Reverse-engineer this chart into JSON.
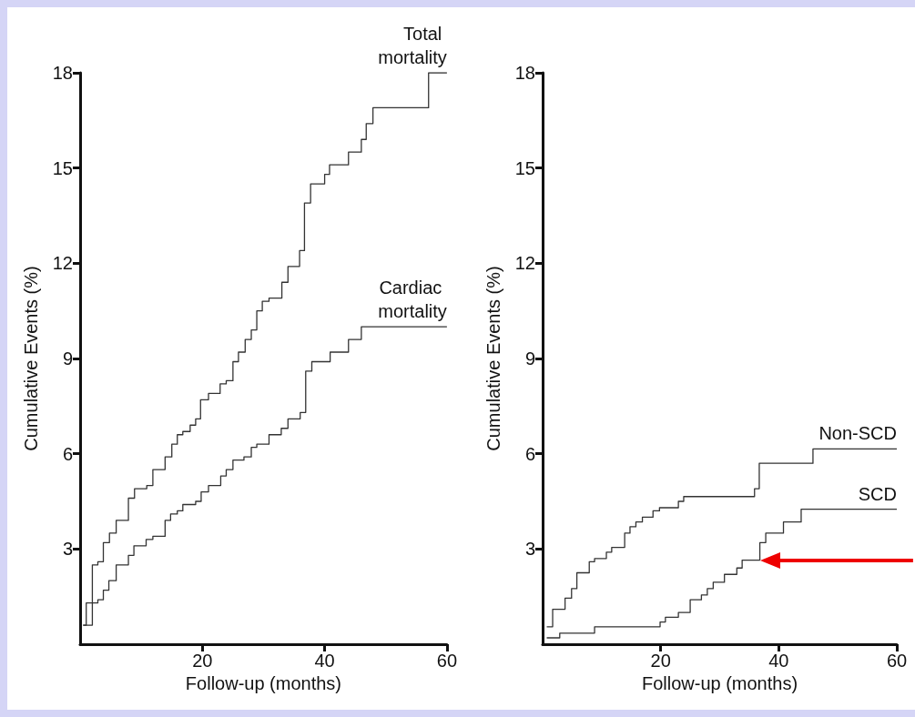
{
  "chart_data": [
    {
      "type": "step",
      "xlabel": "Follow-up (months)",
      "ylabel": "Cumulative Events (%)",
      "xlim": [
        0,
        60
      ],
      "xticks": [
        20,
        40,
        60
      ],
      "ylim": [
        0,
        18
      ],
      "yticks": [
        3,
        6,
        9,
        12,
        15,
        18
      ],
      "marker": "none",
      "grid": false,
      "legend": false,
      "series": [
        {
          "name": "Total mortality",
          "color": "#333333",
          "x": [
            0.5,
            2.0,
            2.9,
            3.8,
            4.8,
            5.9,
            7.9,
            8.9,
            10.9,
            11.9,
            13.9,
            15,
            15.9,
            16.8,
            18,
            18.9,
            19.7,
            21,
            22.9,
            23.9,
            25,
            25.9,
            27,
            28,
            28.9,
            29.8,
            30.9,
            33,
            34,
            35.9,
            36.7,
            37.7,
            40,
            40.8,
            43.9,
            46,
            46.8,
            47.9,
            57,
            60
          ],
          "values": [
            0.6,
            2.5,
            2.6,
            3.2,
            3.5,
            3.9,
            4.6,
            4.9,
            5.0,
            5.5,
            5.9,
            6.3,
            6.6,
            6.7,
            6.9,
            7.1,
            7.7,
            7.9,
            8.2,
            8.3,
            8.9,
            9.2,
            9.6,
            9.9,
            10.5,
            10.8,
            10.9,
            11.4,
            11.9,
            12.4,
            13.9,
            14.5,
            14.8,
            15.1,
            15.5,
            15.9,
            16.4,
            16.9,
            18.0,
            18.0
          ]
        },
        {
          "name": "Cardiac mortality",
          "color": "#333333",
          "x": [
            0.5,
            1.0,
            2.9,
            3.8,
            4.7,
            5.9,
            7.9,
            8.8,
            10.8,
            11.9,
            13.9,
            14.8,
            15.9,
            16.8,
            18.9,
            19.8,
            21,
            23,
            23.9,
            25,
            26.8,
            28,
            28.9,
            30.9,
            32.9,
            34,
            36,
            36.9,
            37.9,
            40.9,
            43.9,
            46,
            60
          ],
          "values": [
            0.6,
            1.3,
            1.4,
            1.7,
            2.0,
            2.5,
            2.8,
            3.1,
            3.3,
            3.4,
            3.9,
            4.1,
            4.2,
            4.4,
            4.5,
            4.8,
            5.0,
            5.3,
            5.5,
            5.8,
            5.9,
            6.2,
            6.3,
            6.6,
            6.8,
            7.1,
            7.3,
            8.6,
            8.9,
            9.2,
            9.6,
            10.0,
            10.0
          ]
        }
      ]
    },
    {
      "type": "step",
      "xlabel": "Follow-up (months)",
      "ylabel": "Cumulative Events (%)",
      "xlim": [
        0,
        60
      ],
      "xticks": [
        20,
        40,
        60
      ],
      "ylim": [
        0,
        18
      ],
      "yticks": [
        3,
        6,
        9,
        12,
        15,
        18
      ],
      "marker": "none",
      "grid": false,
      "legend": false,
      "series": [
        {
          "name": "Non-SCD",
          "color": "#333333",
          "x": [
            0.7,
            1.7,
            3.8,
            4.9,
            5.8,
            7.9,
            8.8,
            10.8,
            11.7,
            13.9,
            14.8,
            15.8,
            16.9,
            18.7,
            19.8,
            23,
            23.9,
            35.9,
            36.7,
            45.8,
            60
          ],
          "values": [
            0.55,
            1.1,
            1.45,
            1.75,
            2.25,
            2.6,
            2.7,
            2.9,
            3.05,
            3.5,
            3.7,
            3.85,
            4.0,
            4.2,
            4.3,
            4.5,
            4.65,
            4.9,
            5.7,
            6.15,
            6.15
          ]
        },
        {
          "name": "SCD",
          "color": "#333333",
          "x": [
            0.7,
            2.9,
            8.8,
            19.9,
            20.8,
            23,
            25,
            26.9,
            27.9,
            28.9,
            30.8,
            32.9,
            33.8,
            36.8,
            37.8,
            40.8,
            43.8,
            60
          ],
          "values": [
            0.2,
            0.35,
            0.55,
            0.7,
            0.85,
            1.0,
            1.4,
            1.55,
            1.75,
            1.95,
            2.2,
            2.4,
            2.65,
            3.2,
            3.5,
            3.85,
            4.25,
            4.25
          ]
        }
      ]
    }
  ]
}
